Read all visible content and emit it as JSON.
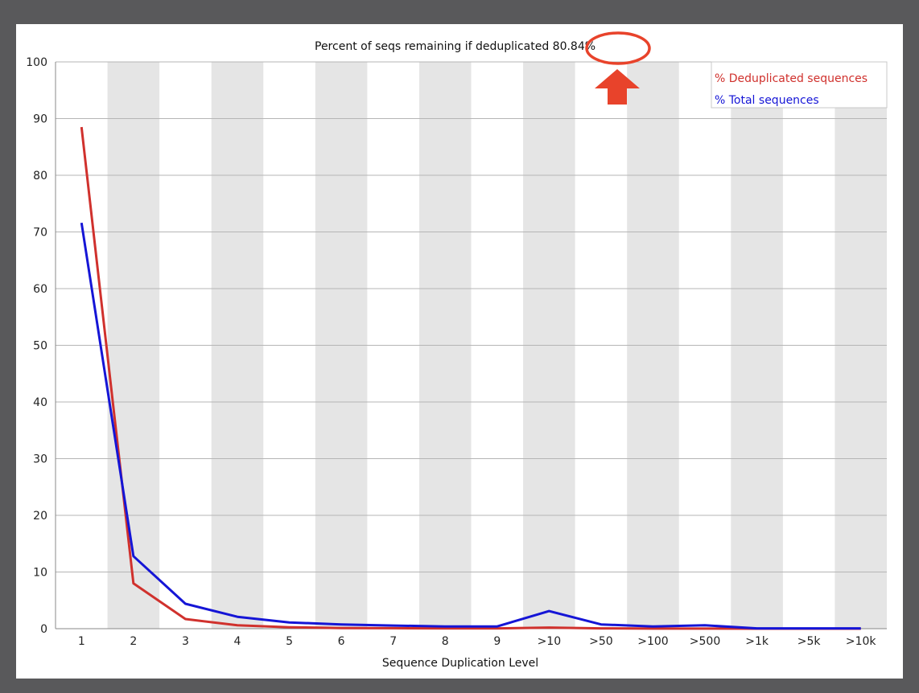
{
  "chart_data": {
    "type": "line",
    "title": "Percent of seqs remaining if deduplicated 80.84%",
    "xlabel": "Sequence Duplication Level",
    "ylabel": "",
    "ylim": [
      0,
      100
    ],
    "yticks": [
      0,
      10,
      20,
      30,
      40,
      50,
      60,
      70,
      80,
      90,
      100
    ],
    "categories": [
      "1",
      "2",
      "3",
      "4",
      "5",
      "6",
      "7",
      "8",
      "9",
      ">10",
      ">50",
      ">100",
      ">500",
      ">1k",
      ">5k",
      ">10k"
    ],
    "grid": true,
    "legend_position": "top-right",
    "series": [
      {
        "name": "% Deduplicated sequences",
        "color": "#d0312d",
        "values": [
          88.5,
          8.0,
          1.7,
          0.6,
          0.25,
          0.12,
          0.08,
          0.05,
          0.05,
          0.2,
          0.05,
          0.02,
          0.02,
          0.0,
          0.0,
          0.0
        ]
      },
      {
        "name": "% Total sequences",
        "color": "#1515d6",
        "values": [
          71.6,
          12.8,
          4.4,
          2.1,
          1.1,
          0.75,
          0.55,
          0.4,
          0.4,
          3.1,
          0.75,
          0.4,
          0.6,
          0.05,
          0.05,
          0.05
        ]
      }
    ],
    "annotation": {
      "type": "callout",
      "highlight": "0.84%",
      "color": "#e8432b"
    }
  }
}
